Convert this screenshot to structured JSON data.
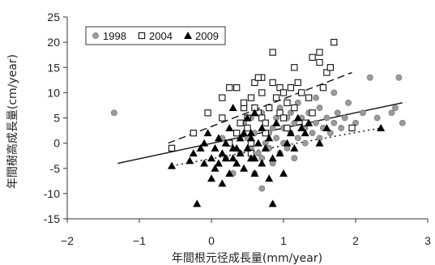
{
  "chart_data": {
    "type": "scatter",
    "xlabel": "年間根元径成長量(mm/year)",
    "ylabel": "年間樹高成長量(cm/year)",
    "xlim": [
      -2,
      3
    ],
    "ylim": [
      -15,
      25
    ],
    "x_ticks": [
      -2,
      -1,
      0,
      1,
      2,
      3
    ],
    "y_ticks": [
      -15,
      -10,
      -5,
      0,
      5,
      10,
      15,
      20,
      25
    ],
    "grid": false,
    "legend_position": "top-left",
    "series": [
      {
        "name": "1998",
        "marker": "gray-circle",
        "color": "#9a9a9a",
        "trend_style": "solid",
        "trend": [
          [
            -1.3,
            -4.0
          ],
          [
            2.65,
            8.0
          ]
        ],
        "points": [
          [
            -1.35,
            6
          ],
          [
            0.45,
            4
          ],
          [
            0.5,
            1
          ],
          [
            0.55,
            5
          ],
          [
            0.6,
            2
          ],
          [
            0.65,
            -2
          ],
          [
            0.7,
            6
          ],
          [
            0.7,
            -3
          ],
          [
            0.75,
            0
          ],
          [
            0.75,
            4
          ],
          [
            0.8,
            2
          ],
          [
            0.8,
            -1
          ],
          [
            0.85,
            3
          ],
          [
            0.85,
            -4
          ],
          [
            0.9,
            5
          ],
          [
            0.9,
            1
          ],
          [
            0.95,
            -2
          ],
          [
            0.95,
            7
          ],
          [
            1.0,
            3
          ],
          [
            1.0,
            0
          ],
          [
            1.05,
            5
          ],
          [
            1.05,
            -1
          ],
          [
            1.1,
            2
          ],
          [
            1.1,
            6
          ],
          [
            1.15,
            4
          ],
          [
            1.15,
            -3
          ],
          [
            1.2,
            1
          ],
          [
            1.2,
            8
          ],
          [
            1.25,
            5
          ],
          [
            1.3,
            3
          ],
          [
            1.3,
            0
          ],
          [
            1.35,
            6
          ],
          [
            1.4,
            2
          ],
          [
            1.45,
            9
          ],
          [
            1.45,
            4
          ],
          [
            1.5,
            1
          ],
          [
            1.5,
            7
          ],
          [
            1.55,
            3
          ],
          [
            1.6,
            5
          ],
          [
            1.65,
            2
          ],
          [
            1.7,
            10
          ],
          [
            1.7,
            4
          ],
          [
            1.75,
            6
          ],
          [
            1.8,
            3
          ],
          [
            1.85,
            5
          ],
          [
            1.9,
            8
          ],
          [
            2.0,
            4
          ],
          [
            2.1,
            6
          ],
          [
            2.2,
            13
          ],
          [
            2.3,
            5
          ],
          [
            2.5,
            6
          ],
          [
            2.55,
            7
          ],
          [
            2.6,
            13
          ],
          [
            2.65,
            4
          ],
          [
            0.3,
            -6
          ],
          [
            0.4,
            -2
          ],
          [
            0.2,
            -3
          ],
          [
            0.6,
            -6
          ],
          [
            0.7,
            -9
          ],
          [
            0.15,
            1
          ],
          [
            0.35,
            2
          ],
          [
            0.55,
            -1
          ]
        ]
      },
      {
        "name": "2004",
        "marker": "open-square",
        "color": "#111111",
        "trend_style": "dashed",
        "trend": [
          [
            -0.6,
            0.0
          ],
          [
            1.95,
            14.0
          ]
        ],
        "points": [
          [
            -0.55,
            -1
          ],
          [
            -0.25,
            2
          ],
          [
            -0.05,
            6
          ],
          [
            0.15,
            9
          ],
          [
            0.15,
            5
          ],
          [
            0.25,
            0
          ],
          [
            0.35,
            11
          ],
          [
            0.35,
            2
          ],
          [
            0.4,
            4
          ],
          [
            0.45,
            7
          ],
          [
            0.5,
            3
          ],
          [
            0.55,
            9
          ],
          [
            0.55,
            0
          ],
          [
            0.6,
            12
          ],
          [
            0.65,
            6
          ],
          [
            0.7,
            5
          ],
          [
            0.7,
            10
          ],
          [
            0.75,
            2
          ],
          [
            0.8,
            7
          ],
          [
            0.85,
            18
          ],
          [
            0.85,
            12
          ],
          [
            0.9,
            9
          ],
          [
            0.95,
            11
          ],
          [
            0.95,
            6
          ],
          [
            1.0,
            10
          ],
          [
            1.05,
            8
          ],
          [
            1.05,
            3
          ],
          [
            1.1,
            11
          ],
          [
            1.15,
            7
          ],
          [
            1.2,
            12
          ],
          [
            1.25,
            10
          ],
          [
            1.3,
            4
          ],
          [
            1.35,
            9
          ],
          [
            1.4,
            17
          ],
          [
            1.4,
            6
          ],
          [
            1.5,
            18
          ],
          [
            1.5,
            16
          ],
          [
            1.55,
            11
          ],
          [
            1.6,
            14
          ],
          [
            1.65,
            15
          ],
          [
            1.7,
            20
          ],
          [
            1.95,
            3
          ],
          [
            0.6,
            7
          ],
          [
            0.7,
            13
          ],
          [
            0.5,
            5
          ],
          [
            0.45,
            8
          ],
          [
            0.25,
            11
          ],
          [
            0.65,
            13
          ],
          [
            1.15,
            15
          ],
          [
            0.75,
            4
          ],
          [
            1.0,
            5
          ],
          [
            0.55,
            -2
          ]
        ]
      },
      {
        "name": "2009",
        "marker": "filled-triangle",
        "color": "#000000",
        "trend_style": "dotted",
        "trend": [
          [
            -0.55,
            -4.5
          ],
          [
            2.35,
            3.0
          ]
        ],
        "points": [
          [
            -0.55,
            -4.5
          ],
          [
            -0.3,
            -3.5
          ],
          [
            -0.25,
            -2
          ],
          [
            -0.2,
            -12
          ],
          [
            -0.15,
            -1
          ],
          [
            -0.1,
            0
          ],
          [
            -0.1,
            -4
          ],
          [
            -0.05,
            2
          ],
          [
            0.0,
            -3
          ],
          [
            0.0,
            -7
          ],
          [
            0.05,
            -1
          ],
          [
            0.05,
            -5
          ],
          [
            0.1,
            1
          ],
          [
            0.1,
            -4
          ],
          [
            0.15,
            -2
          ],
          [
            0.15,
            -8
          ],
          [
            0.2,
            0
          ],
          [
            0.2,
            -3
          ],
          [
            0.25,
            3
          ],
          [
            0.25,
            -6
          ],
          [
            0.3,
            7
          ],
          [
            0.3,
            -1
          ],
          [
            0.35,
            -4
          ],
          [
            0.4,
            1
          ],
          [
            0.4,
            -2
          ],
          [
            0.45,
            -5
          ],
          [
            0.5,
            5
          ],
          [
            0.5,
            -1
          ],
          [
            0.55,
            2
          ],
          [
            0.55,
            -3
          ],
          [
            0.6,
            6
          ],
          [
            0.6,
            -6
          ],
          [
            0.65,
            0
          ],
          [
            0.7,
            3
          ],
          [
            0.7,
            -4
          ],
          [
            0.75,
            -1
          ],
          [
            0.8,
            1
          ],
          [
            0.8,
            -7
          ],
          [
            0.85,
            -12
          ],
          [
            0.85,
            -3
          ],
          [
            0.9,
            4
          ],
          [
            0.95,
            -2
          ],
          [
            1.0,
            -6
          ],
          [
            1.05,
            0
          ],
          [
            1.1,
            2
          ],
          [
            1.15,
            -1
          ],
          [
            1.2,
            5
          ],
          [
            1.25,
            3
          ],
          [
            1.3,
            2
          ],
          [
            1.35,
            4
          ],
          [
            1.5,
            0
          ],
          [
            1.6,
            3
          ],
          [
            2.35,
            3
          ],
          [
            0.35,
            -1
          ],
          [
            0.6,
            -3
          ],
          [
            0.45,
            2
          ],
          [
            0.3,
            -3
          ],
          [
            0.55,
            1
          ]
        ]
      }
    ]
  }
}
